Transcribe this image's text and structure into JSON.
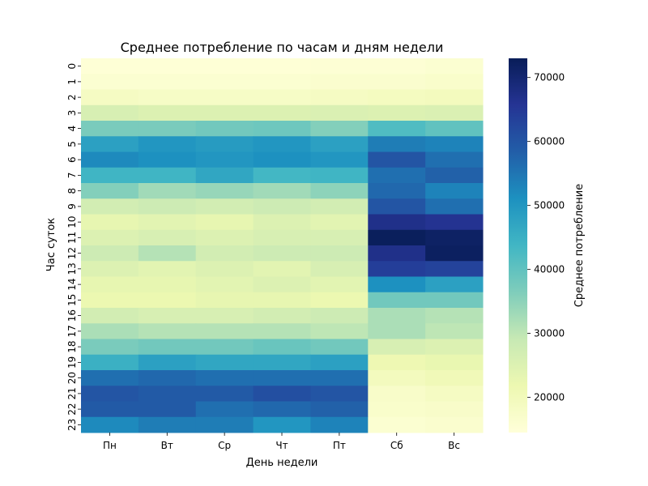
{
  "chart_data": {
    "type": "heatmap",
    "title": "Среднее потребление по часам и дням недели",
    "xlabel": "День недели",
    "ylabel": "Час суток",
    "x_categories": [
      "Пн",
      "Вт",
      "Ср",
      "Чт",
      "Пт",
      "Сб",
      "Вс"
    ],
    "y_categories": [
      "0",
      "1",
      "2",
      "3",
      "4",
      "5",
      "6",
      "7",
      "8",
      "9",
      "10",
      "11",
      "12",
      "13",
      "14",
      "15",
      "16",
      "17",
      "18",
      "19",
      "20",
      "21",
      "22",
      "23"
    ],
    "values": [
      [
        15000,
        15000,
        15000,
        15000,
        15500,
        15500,
        16000
      ],
      [
        16000,
        16000,
        16000,
        16000,
        16500,
        16500,
        17000
      ],
      [
        18500,
        18000,
        18000,
        18000,
        18500,
        19000,
        19500
      ],
      [
        26000,
        25000,
        25000,
        25000,
        25500,
        25000,
        25500
      ],
      [
        37000,
        37000,
        38000,
        38500,
        36000,
        42000,
        40000
      ],
      [
        48000,
        50000,
        49000,
        50000,
        48000,
        54000,
        53000
      ],
      [
        52000,
        51000,
        50000,
        51000,
        50000,
        60000,
        56000
      ],
      [
        44000,
        44000,
        47000,
        43500,
        44000,
        56000,
        58000
      ],
      [
        36000,
        33000,
        34000,
        33000,
        35000,
        57000,
        53000
      ],
      [
        27000,
        28000,
        27000,
        28000,
        27000,
        60000,
        56000
      ],
      [
        23000,
        24000,
        23000,
        25000,
        24000,
        67000,
        66000
      ],
      [
        25000,
        26000,
        25000,
        26000,
        26000,
        72500,
        71500
      ],
      [
        28000,
        31000,
        27000,
        28000,
        28000,
        67000,
        72000
      ],
      [
        25000,
        24000,
        25000,
        24000,
        26000,
        64000,
        63000
      ],
      [
        23000,
        23000,
        24000,
        25000,
        24000,
        51000,
        48000
      ],
      [
        22000,
        22000,
        23000,
        23000,
        22000,
        38000,
        38000
      ],
      [
        27000,
        26000,
        26000,
        27000,
        28000,
        32000,
        31000
      ],
      [
        32000,
        31000,
        31000,
        31000,
        30000,
        32000,
        30000
      ],
      [
        37000,
        38000,
        38000,
        39000,
        38000,
        26000,
        25000
      ],
      [
        45000,
        48000,
        47000,
        47000,
        48000,
        21500,
        22500
      ],
      [
        56000,
        57000,
        56000,
        56000,
        56000,
        19500,
        20500
      ],
      [
        60000,
        59000,
        59000,
        61000,
        60000,
        17500,
        18500
      ],
      [
        59000,
        59000,
        56000,
        57000,
        58000,
        17000,
        17500
      ],
      [
        52000,
        54000,
        54000,
        50000,
        53000,
        16000,
        16500
      ]
    ],
    "colorbar": {
      "label": "Среднее потребление",
      "min": 14500,
      "max": 73000,
      "ticks": [
        20000,
        30000,
        40000,
        50000,
        60000,
        70000
      ],
      "colormap": "YlGnBu",
      "colors": [
        "#ffffd9",
        "#edf8b1",
        "#c7e9b4",
        "#7fcdbb",
        "#41b6c4",
        "#1d91c0",
        "#225ea8",
        "#253494",
        "#081d58"
      ]
    },
    "grid": false
  }
}
